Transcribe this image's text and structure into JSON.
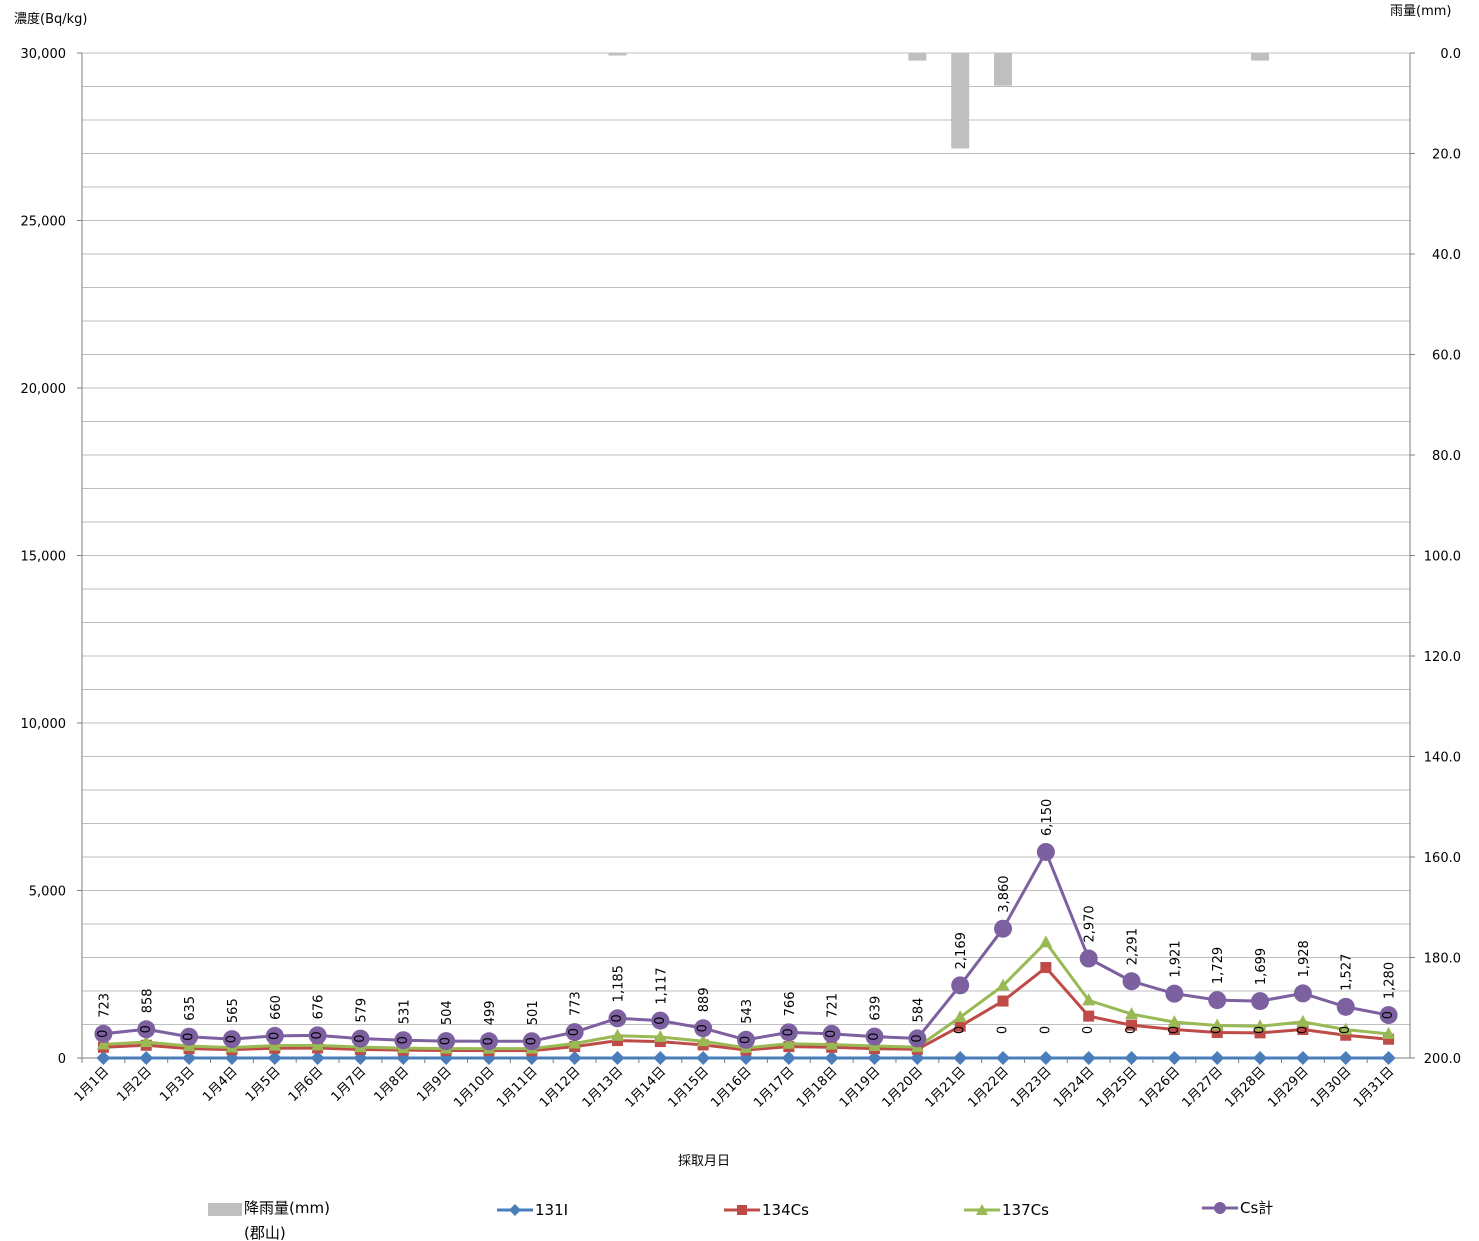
{
  "chart_data": {
    "type": "line",
    "y_left_title": "濃度(Bq/kg)",
    "y_right_title": "雨量(mm)",
    "x_title": "採取月日",
    "y_left_ticks": [
      "0",
      "5,000",
      "10,000",
      "15,000",
      "20,000",
      "25,000",
      "30,000"
    ],
    "y_right_ticks": [
      "0.0",
      "20.0",
      "40.0",
      "60.0",
      "80.0",
      "100.0",
      "120.0",
      "140.0",
      "160.0",
      "180.0",
      "200.0"
    ],
    "y_left_range": [
      0,
      30000
    ],
    "y_right_range": [
      0,
      200
    ],
    "y_right_reversed": true,
    "grid": true,
    "legend_position": "bottom",
    "categories": [
      "1月1日",
      "1月2日",
      "1月3日",
      "1月4日",
      "1月5日",
      "1月6日",
      "1月7日",
      "1月8日",
      "1月9日",
      "1月10日",
      "1月11日",
      "1月12日",
      "1月13日",
      "1月14日",
      "1月15日",
      "1月16日",
      "1月17日",
      "1月18日",
      "1月19日",
      "1月20日",
      "1月21日",
      "1月22日",
      "1月23日",
      "1月24日",
      "1月25日",
      "1月26日",
      "1月27日",
      "1月28日",
      "1月29日",
      "1月30日",
      "1月31日"
    ],
    "rain": {
      "name": "降雨量(mm)",
      "name2": "(郡山)",
      "color": "#bfbfbf",
      "values": [
        0,
        0,
        0,
        0,
        0,
        0,
        0,
        0,
        0,
        0,
        0,
        0,
        0.5,
        0,
        0,
        0,
        0,
        0,
        0,
        1.5,
        19,
        6.5,
        0,
        0,
        0,
        0,
        0,
        1.5,
        0,
        0,
        0
      ]
    },
    "series": [
      {
        "name": "131I",
        "color": "#4a7ebb",
        "marker": "diamond",
        "values": [
          0,
          0,
          0,
          0,
          0,
          0,
          0,
          0,
          0,
          0,
          0,
          0,
          0,
          0,
          0,
          0,
          0,
          0,
          0,
          0,
          0,
          0,
          0,
          0,
          0,
          0,
          0,
          0,
          0,
          0,
          0
        ],
        "labels": [
          "0",
          "0",
          "0",
          "0",
          "0",
          "0",
          "0",
          "0",
          "0",
          "0",
          "0",
          "0",
          "0",
          "0",
          "0",
          "0",
          "0",
          "0",
          "0",
          "0",
          "0",
          "0",
          "0",
          "0",
          "0",
          "0",
          "0",
          "0",
          "0",
          "0",
          "0"
        ]
      },
      {
        "name": "134Cs",
        "color": "#be4b48",
        "marker": "square",
        "values": [
          320,
          380,
          280,
          250,
          290,
          300,
          255,
          235,
          225,
          220,
          220,
          340,
          520,
          490,
          390,
          240,
          340,
          320,
          280,
          260,
          950,
          1700,
          2700,
          1250,
          980,
          850,
          760,
          750,
          850,
          680,
          560
        ]
      },
      {
        "name": "137Cs",
        "color": "#98b954",
        "marker": "triangle",
        "values": [
          403,
          478,
          355,
          315,
          370,
          376,
          324,
          296,
          279,
          279,
          281,
          433,
          665,
          627,
          499,
          303,
          426,
          401,
          359,
          324,
          1219,
          2160,
          3450,
          1720,
          1311,
          1071,
          969,
          949,
          1078,
          847,
          720
        ]
      },
      {
        "name": "Cs計",
        "color": "#7d60a0",
        "marker": "circle",
        "values": [
          723,
          858,
          635,
          565,
          660,
          676,
          579,
          531,
          504,
          499,
          501,
          773,
          1185,
          1117,
          889,
          543,
          766,
          721,
          639,
          584,
          2169,
          3860,
          6150,
          2970,
          2291,
          1921,
          1729,
          1699,
          1928,
          1527,
          1280
        ],
        "labels": [
          "723",
          "858",
          "635",
          "565",
          "660",
          "676",
          "579",
          "531",
          "504",
          "499",
          "501",
          "773",
          "1,185",
          "1,117",
          "889",
          "543",
          "766",
          "721",
          "639",
          "584",
          "2,169",
          "3,860",
          "6,150",
          "2,970",
          "2,291",
          "1,921",
          "1,729",
          "1,699",
          "1,928",
          "1,527",
          "1,280"
        ]
      }
    ]
  }
}
